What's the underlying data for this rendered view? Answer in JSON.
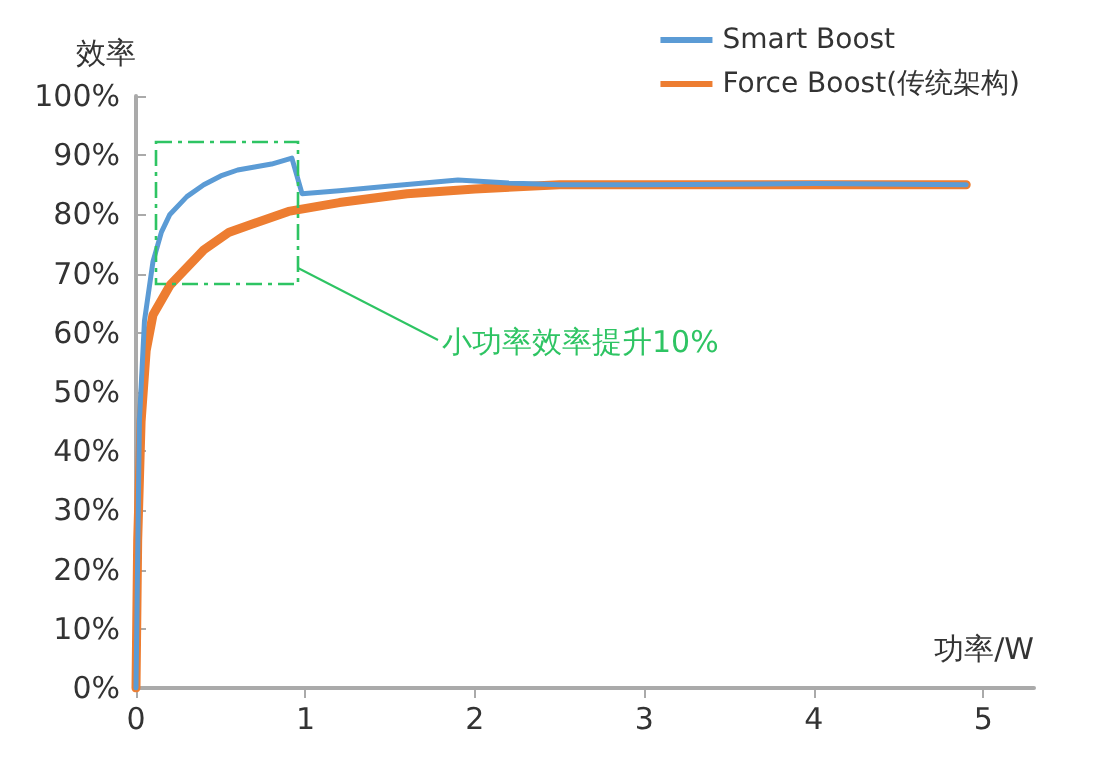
{
  "chart_data": {
    "type": "line",
    "ylabel": "效率",
    "xlabel": "功率/W",
    "xlim": [
      0,
      5.3
    ],
    "xticks": [
      0,
      1,
      2,
      3,
      4,
      5
    ],
    "ylim": [
      0,
      100
    ],
    "yticks": [
      {
        "value": 0,
        "label": "0%"
      },
      {
        "value": 10,
        "label": "10%"
      },
      {
        "value": 20,
        "label": "20%"
      },
      {
        "value": 30,
        "label": "30%"
      },
      {
        "value": 40,
        "label": "40%"
      },
      {
        "value": 50,
        "label": "50%"
      },
      {
        "value": 60,
        "label": "60%"
      },
      {
        "value": 70,
        "label": "70%"
      },
      {
        "value": 80,
        "label": "80%"
      },
      {
        "value": 90,
        "label": "90%"
      },
      {
        "value": 100,
        "label": "100%"
      }
    ],
    "grid": false,
    "legend": "top right",
    "marker": "none",
    "line_style": "solid",
    "annotations": [
      "小功率效率提升10%"
    ],
    "series": [
      {
        "name": "Smart Boost",
        "color": "#5b9bd5",
        "x": [
          0,
          0.02,
          0.05,
          0.1,
          0.15,
          0.2,
          0.3,
          0.4,
          0.5,
          0.6,
          0.7,
          0.8,
          0.92,
          0.98,
          1.2,
          1.5,
          1.9,
          2.2,
          2.5,
          3,
          4,
          4.9
        ],
        "values": [
          0,
          45,
          62,
          72,
          77,
          80,
          83,
          85,
          86.5,
          87.5,
          88,
          88.5,
          89.5,
          83.5,
          84,
          84.8,
          85.8,
          85.3,
          85,
          85,
          85.2,
          85
        ]
      },
      {
        "name": "Force Boost(传统架构)",
        "color": "#ed7d31",
        "x": [
          0,
          0.01,
          0.03,
          0.06,
          0.1,
          0.2,
          0.3,
          0.4,
          0.55,
          0.7,
          0.9,
          1.2,
          1.6,
          2,
          2.5,
          3,
          4,
          4.9
        ],
        "values": [
          0,
          25,
          45,
          57,
          63,
          68,
          71,
          74,
          77,
          78.5,
          80.5,
          82,
          83.5,
          84.3,
          85,
          85,
          85,
          85
        ]
      }
    ]
  }
}
